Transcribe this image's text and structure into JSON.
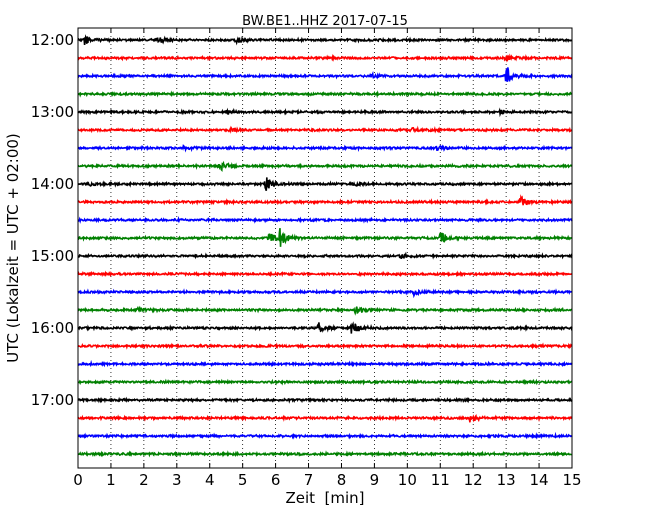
{
  "chart_data": {
    "type": "line",
    "title": "BW.BE1..HHZ 2017-07-15",
    "xlabel": "Zeit  [min]",
    "ylabel": "UTC (Lokalzeit = UTC + 02:00)",
    "xlim": [
      0,
      15
    ],
    "x_ticks": [
      "0",
      "1",
      "2",
      "3",
      "4",
      "5",
      "6",
      "7",
      "8",
      "9",
      "10",
      "11",
      "12",
      "13",
      "14",
      "15"
    ],
    "y_tick_labels": [
      "12:00",
      "13:00",
      "14:00",
      "15:00",
      "16:00",
      "17:00"
    ],
    "trace_start_times": [
      "12:00",
      "12:15",
      "12:30",
      "12:45",
      "13:00",
      "13:15",
      "13:30",
      "13:45",
      "14:00",
      "14:15",
      "14:30",
      "14:45",
      "15:00",
      "15:15",
      "15:30",
      "15:45",
      "16:00",
      "16:15",
      "16:30",
      "16:45",
      "17:00",
      "17:15",
      "17:30",
      "17:45"
    ],
    "trace_colors": [
      "#000000",
      "#ff0000",
      "#0000ff",
      "#008000"
    ],
    "grid": "vertical dotted",
    "events": [
      {
        "trace": 0,
        "min": 0.2,
        "amp": 0.45
      },
      {
        "trace": 0,
        "min": 2.4,
        "amp": 0.35
      },
      {
        "trace": 0,
        "min": 4.8,
        "amp": 0.3
      },
      {
        "trace": 1,
        "min": 12.95,
        "amp": 0.3
      },
      {
        "trace": 2,
        "min": 13.0,
        "amp": 1.05
      },
      {
        "trace": 2,
        "min": 8.9,
        "amp": 0.15
      },
      {
        "trace": 4,
        "min": 4.5,
        "amp": 0.15
      },
      {
        "trace": 4,
        "min": 12.8,
        "amp": 0.2
      },
      {
        "trace": 5,
        "min": 4.6,
        "amp": 0.15
      },
      {
        "trace": 5,
        "min": 10.1,
        "amp": 0.2
      },
      {
        "trace": 6,
        "min": 3.2,
        "amp": 0.15
      },
      {
        "trace": 6,
        "min": 10.9,
        "amp": 0.2
      },
      {
        "trace": 7,
        "min": 4.3,
        "amp": 0.5
      },
      {
        "trace": 8,
        "min": 5.7,
        "amp": 1.05
      },
      {
        "trace": 8,
        "min": 0.3,
        "amp": 0.15
      },
      {
        "trace": 8,
        "min": 8.4,
        "amp": 0.15
      },
      {
        "trace": 9,
        "min": 13.4,
        "amp": 0.6
      },
      {
        "trace": 11,
        "min": 6.1,
        "amp": 1.0
      },
      {
        "trace": 11,
        "min": 5.8,
        "amp": 0.5
      },
      {
        "trace": 11,
        "min": 11.0,
        "amp": 0.8
      },
      {
        "trace": 12,
        "min": 9.8,
        "amp": 0.2
      },
      {
        "trace": 14,
        "min": 10.2,
        "amp": 0.3
      },
      {
        "trace": 15,
        "min": 1.8,
        "amp": 0.2
      },
      {
        "trace": 15,
        "min": 8.4,
        "amp": 0.4
      },
      {
        "trace": 16,
        "min": 8.3,
        "amp": 0.95
      },
      {
        "trace": 16,
        "min": 7.3,
        "amp": 0.5
      },
      {
        "trace": 21,
        "min": 11.9,
        "amp": 0.4
      }
    ]
  }
}
